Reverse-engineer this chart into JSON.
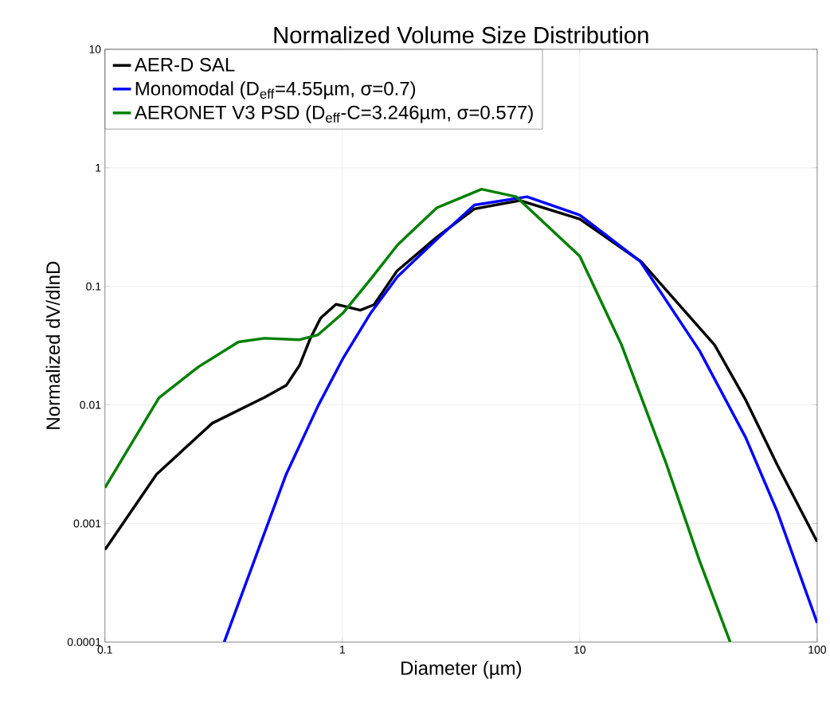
{
  "chart_data": {
    "type": "line",
    "title": "Normalized Volume Size Distribution",
    "xlabel": "Diameter (µm)",
    "ylabel": "Normalized dV/dlnD",
    "log": "xy",
    "xlim": [
      0.1,
      100
    ],
    "ylim": [
      0.0001,
      10
    ],
    "xticks": [
      0.1,
      1,
      10,
      100
    ],
    "yticks": [
      0.0001,
      0.001,
      0.01,
      0.1,
      1,
      10
    ],
    "grid": true,
    "legend": "top left",
    "marker": "none",
    "line_style": "solid",
    "series": [
      {
        "name": "AER-D SAL",
        "color": "#000000",
        "x": [
          0.1,
          0.165,
          0.283,
          0.471,
          0.58,
          0.66,
          0.73,
          0.81,
          0.94,
          1.02,
          1.19,
          1.36,
          1.7,
          2.5,
          3.6,
          5.6,
          10,
          18.1,
          37,
          50,
          68,
          100
        ],
        "values": [
          0.0006,
          0.0026,
          0.007,
          0.0116,
          0.0146,
          0.0215,
          0.0357,
          0.054,
          0.0705,
          0.068,
          0.063,
          0.07,
          0.135,
          0.26,
          0.45,
          0.53,
          0.37,
          0.162,
          0.032,
          0.011,
          0.0031,
          0.0007
        ]
      },
      {
        "name": "Monomodal (D$_{eff}$=4.55µm, σ=0.7)",
        "color": "#0000ff",
        "x": [
          0.318,
          0.58,
          0.79,
          1.01,
          1.32,
          1.71,
          2.5,
          3.6,
          6.0,
          10,
          18,
          32,
          50,
          68,
          100
        ],
        "values": [
          0.0001,
          0.0026,
          0.0098,
          0.025,
          0.06,
          0.121,
          0.25,
          0.485,
          0.57,
          0.4,
          0.162,
          0.0285,
          0.0053,
          0.00125,
          0.000145
        ]
      },
      {
        "name": "AERONET V3 PSD (D$_{eff}$-C=3.246µm, σ=0.577)",
        "color": "#008000",
        "x": [
          0.1,
          0.169,
          0.248,
          0.365,
          0.47,
          0.66,
          0.79,
          1.01,
          1.32,
          1.71,
          2.5,
          3.86,
          5.4,
          10,
          15,
          23,
          32,
          43
        ],
        "values": [
          0.002,
          0.0115,
          0.021,
          0.034,
          0.0365,
          0.0355,
          0.039,
          0.06,
          0.116,
          0.224,
          0.46,
          0.66,
          0.57,
          0.18,
          0.032,
          0.0033,
          0.00048,
          0.0001
        ]
      }
    ]
  }
}
